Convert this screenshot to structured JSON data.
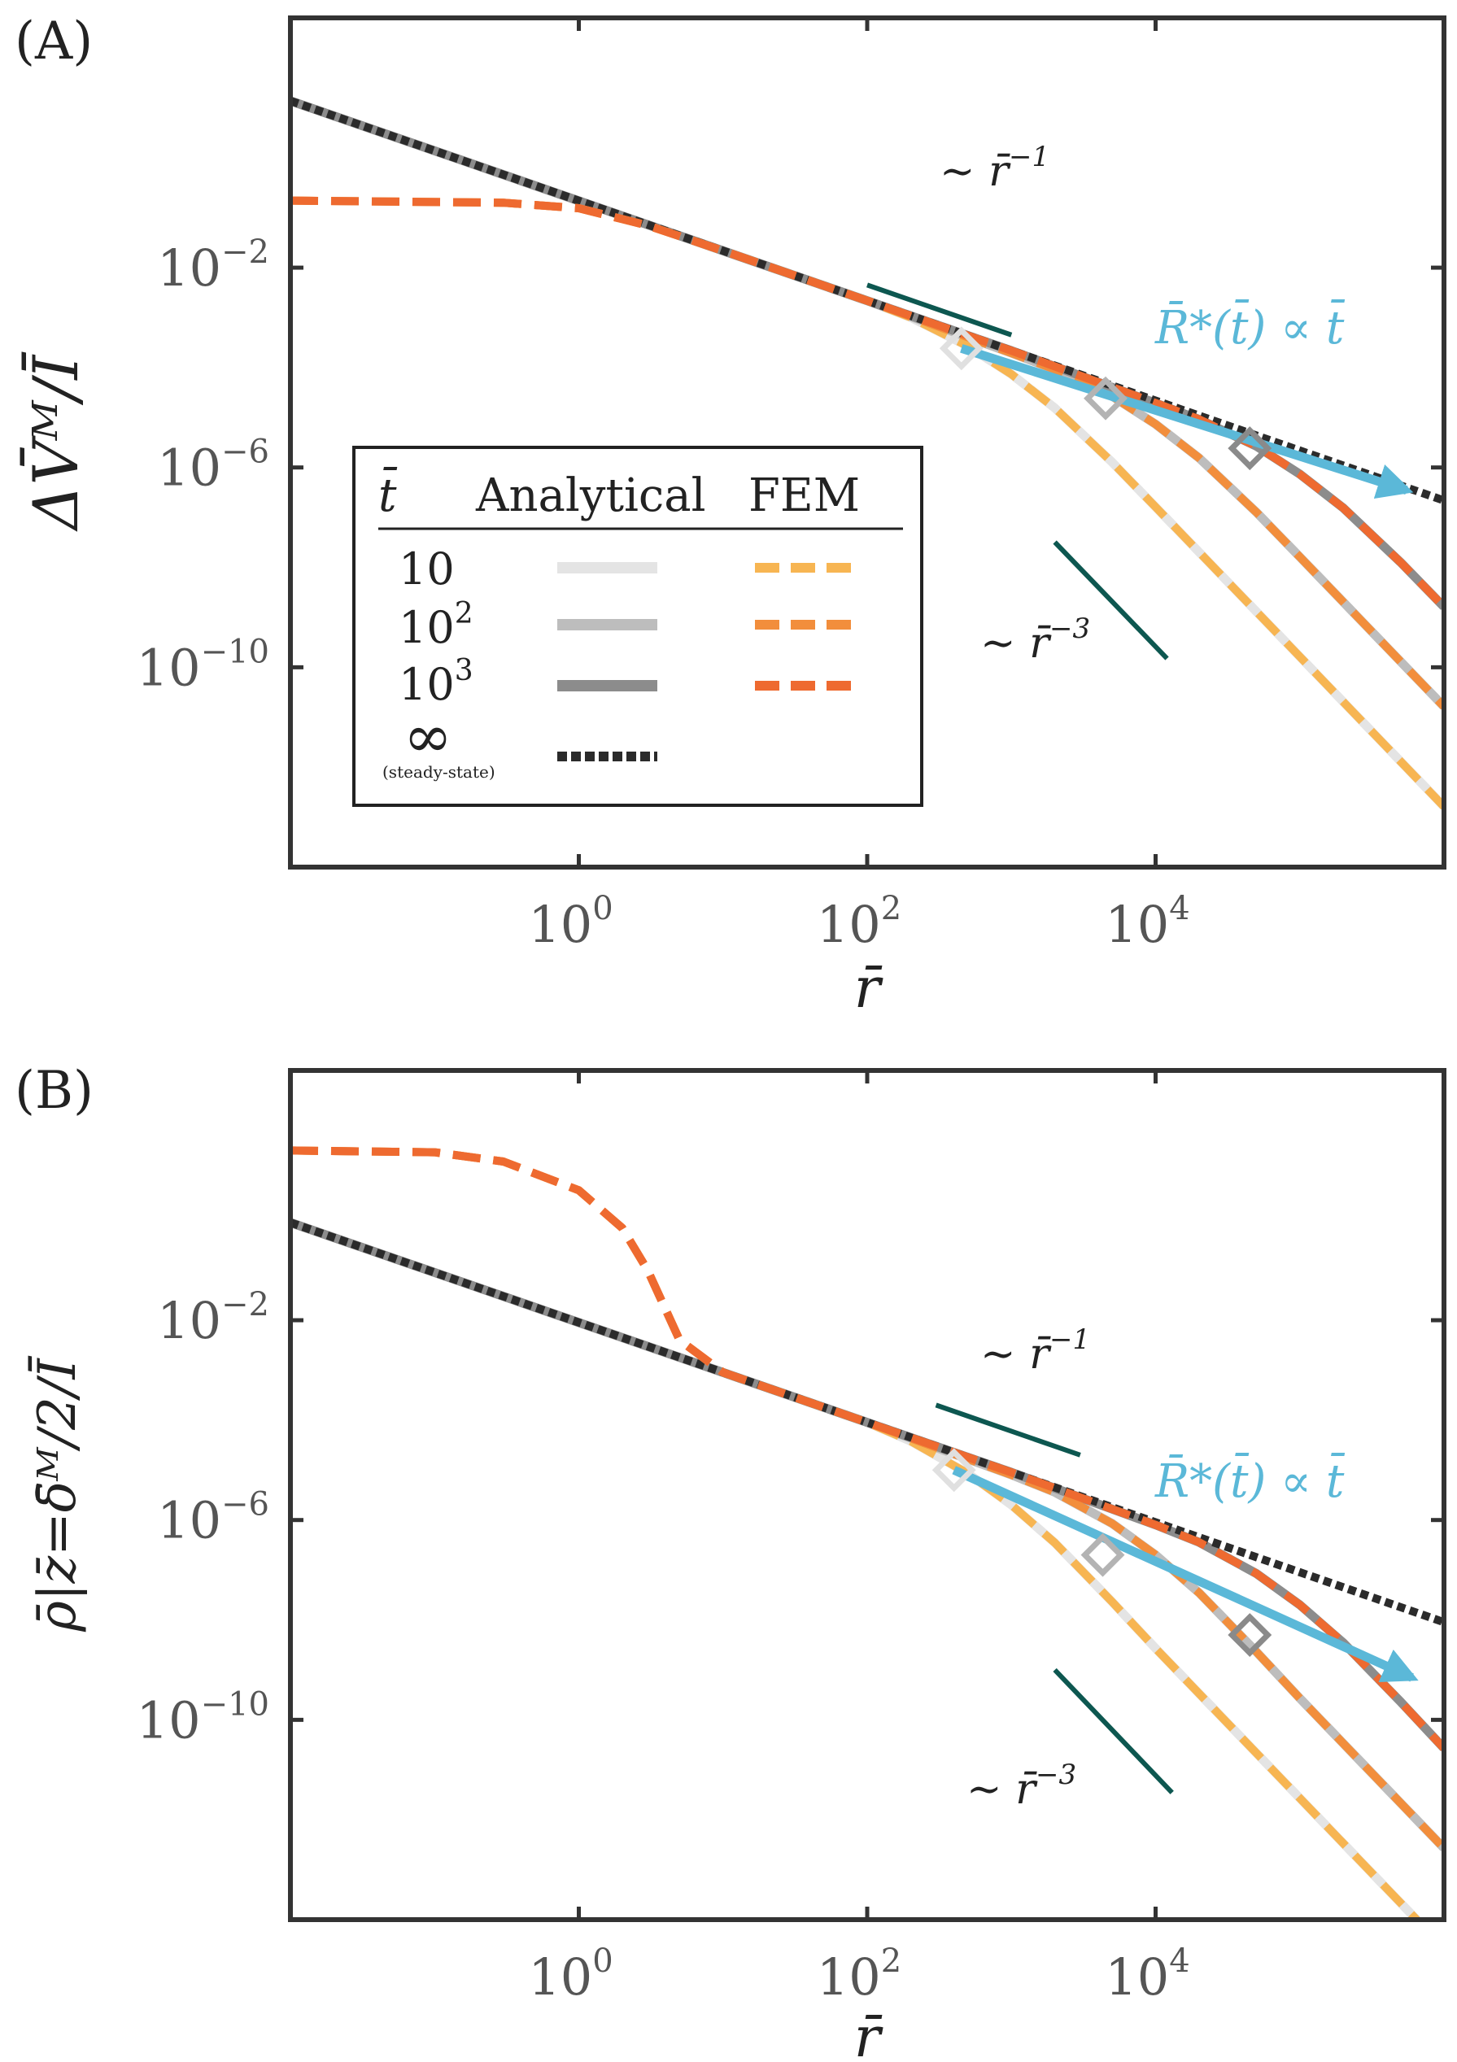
{
  "chart_data": [
    {
      "type": "line",
      "panel_label": "(A)",
      "xscale": "log",
      "yscale": "log",
      "xlim": [
        0.01,
        1000000
      ],
      "ylim": [
        1e-14,
        1000
      ],
      "xlabel": "r̄",
      "ylabel": "ΔV̄ᴹ/Ī",
      "x_ticks": [
        1,
        100,
        10000
      ],
      "x_tick_labels": [
        {
          "b": "10",
          "e": "0"
        },
        {
          "b": "10",
          "e": "2"
        },
        {
          "b": "10",
          "e": "4"
        }
      ],
      "y_ticks": [
        0.01,
        1e-06,
        1e-10
      ],
      "y_tick_labels": [
        {
          "b": "10",
          "e": "−2"
        },
        {
          "b": "10",
          "e": "−6"
        },
        {
          "b": "10",
          "e": "−10"
        }
      ],
      "near_field_plateau": 0.22,
      "series": [
        {
          "name": "Analytical t̄=10",
          "group": "Analytical",
          "t": 10,
          "color": "#e4e4e4",
          "style": "solid",
          "x": [
            0.01,
            1,
            10,
            100,
            200,
            500,
            1000,
            2000,
            5000,
            10000,
            100000,
            1000000
          ],
          "y": [
            21.8,
            0.218,
            0.0218,
            0.00218,
            0.00101,
            0.000267,
            7.36e-05,
            1.55e-05,
            1.27e-06,
            1.62e-07,
            1.63e-10,
            1.63e-13
          ]
        },
        {
          "name": "Analytical t̄=10²",
          "group": "Analytical",
          "t": 100,
          "color": "#bdbdbd",
          "style": "solid",
          "x": [
            0.01,
            1,
            10,
            100,
            1000,
            2000,
            5000,
            10000,
            20000,
            50000,
            100000,
            1000000
          ],
          "y": [
            21.8,
            0.218,
            0.0218,
            0.00218,
            0.000195,
            9.2e-05,
            2.67e-05,
            7.36e-06,
            1.55e-06,
            1.27e-07,
            1.62e-08,
            1.63e-11
          ]
        },
        {
          "name": "Analytical t̄=10³",
          "group": "Analytical",
          "t": 1000,
          "color": "#8c8c8c",
          "style": "solid",
          "x": [
            0.01,
            1,
            10,
            100,
            1000,
            10000,
            20000,
            50000,
            100000,
            200000,
            500000,
            1000000
          ],
          "y": [
            21.8,
            0.218,
            0.0218,
            0.00218,
            0.000218,
            1.95e-05,
            9.2e-06,
            2.67e-06,
            7.36e-07,
            1.55e-07,
            1.27e-08,
            1.62e-09
          ]
        },
        {
          "name": "FEM t̄=10",
          "group": "FEM",
          "t": 10,
          "color": "#f7b552",
          "style": "dashed",
          "x": [
            0.01,
            0.3,
            1,
            3,
            10,
            100,
            200,
            500,
            1000,
            2000,
            5000,
            10000,
            100000,
            1000000
          ],
          "y": [
            0.22,
            0.2,
            0.155,
            0.07,
            0.0218,
            0.00218,
            0.00101,
            0.000267,
            7.36e-05,
            1.55e-05,
            1.27e-06,
            1.62e-07,
            1.63e-10,
            1.63e-13
          ]
        },
        {
          "name": "FEM t̄=10²",
          "group": "FEM",
          "t": 100,
          "color": "#f28e3c",
          "style": "dashed",
          "x": [
            0.01,
            0.3,
            1,
            3,
            10,
            100,
            1000,
            2000,
            5000,
            10000,
            20000,
            50000,
            100000,
            1000000
          ],
          "y": [
            0.22,
            0.2,
            0.155,
            0.07,
            0.0218,
            0.00218,
            0.000195,
            9.2e-05,
            2.67e-05,
            7.36e-06,
            1.55e-06,
            1.27e-07,
            1.62e-08,
            1.63e-11
          ]
        },
        {
          "name": "FEM t̄=10³",
          "group": "FEM",
          "t": 1000,
          "color": "#ee6a30",
          "style": "dashed",
          "x": [
            0.01,
            0.3,
            1,
            3,
            10,
            100,
            1000,
            10000,
            20000,
            50000,
            100000,
            200000,
            500000,
            1000000
          ],
          "y": [
            0.22,
            0.2,
            0.155,
            0.07,
            0.0218,
            0.00218,
            0.000218,
            1.95e-05,
            9.2e-06,
            2.67e-06,
            7.36e-07,
            1.55e-07,
            1.27e-08,
            1.62e-09
          ]
        },
        {
          "name": "Steady-state t̄=∞",
          "group": "Analytical",
          "t": "∞",
          "color": "#2b2b2b",
          "style": "dotted",
          "x": [
            0.01,
            1000000
          ],
          "y": [
            21.8,
            2.18e-07
          ]
        }
      ],
      "markers_R_star": {
        "x": [
          450,
          4500,
          45000
        ],
        "y": [
          0.000242,
          2.42e-05,
          2.42e-06
        ],
        "colors": [
          "#e0e0e0",
          "#b3b3b3",
          "#8a8a8a"
        ]
      },
      "arrow_label": "R̄*(t̄) ∝ t̄",
      "arrow_color": "#5bb8d8",
      "arrow": {
        "x": [
          450,
          550000
        ],
        "y": [
          0.000242,
          3.5e-07
        ]
      },
      "slope_guides": [
        {
          "label": "∼ r̄",
          "exp": "−1",
          "x": [
            100,
            1000
          ],
          "y": [
            0.0045,
            0.00045
          ]
        },
        {
          "label": "∼ r̄",
          "exp": "−3",
          "x": [
            2000,
            12000
          ],
          "y": [
            3.2e-08,
            1.5e-10
          ]
        }
      ],
      "legend": {
        "placement": "center-left",
        "headers": [
          "t̄",
          "Analytical",
          "FEM"
        ],
        "rows": [
          {
            "t": "10",
            "sup": "",
            "sub": ""
          },
          {
            "t": "10",
            "sup": "2",
            "sub": ""
          },
          {
            "t": "10",
            "sup": "3",
            "sub": ""
          },
          {
            "t": "∞",
            "sup": "",
            "sub": "(steady-state)"
          }
        ]
      }
    },
    {
      "type": "line",
      "panel_label": "(B)",
      "xscale": "log",
      "yscale": "log",
      "xlim": [
        0.01,
        1000000
      ],
      "ylim": [
        1e-14,
        1000
      ],
      "xlabel": "r̄",
      "ylabel": "ρ̄|z̄=δ̄ᴹ/2/Ī",
      "x_ticks": [
        1,
        100,
        10000
      ],
      "x_tick_labels": [
        {
          "b": "10",
          "e": "0"
        },
        {
          "b": "10",
          "e": "2"
        },
        {
          "b": "10",
          "e": "4"
        }
      ],
      "y_ticks": [
        0.01,
        1e-06,
        1e-10
      ],
      "y_tick_labels": [
        {
          "b": "10",
          "e": "−2"
        },
        {
          "b": "10",
          "e": "−6"
        },
        {
          "b": "10",
          "e": "−10"
        }
      ],
      "series": [
        {
          "name": "Analytical t̄=10",
          "group": "Analytical",
          "t": 10,
          "color": "#e4e4e4",
          "style": "solid",
          "x": [
            0.01,
            1,
            10,
            100,
            200,
            500,
            1000,
            2000,
            5000,
            10000,
            100000,
            1000000
          ],
          "y": [
            0.9,
            0.009,
            0.0009,
            9e-05,
            3.8e-05,
            8.5e-06,
            2e-06,
            3.5e-07,
            2.3e-08,
            2.7e-09,
            2.7e-12,
            2.7e-15
          ]
        },
        {
          "name": "Analytical t̄=10²",
          "group": "Analytical",
          "t": 100,
          "color": "#bdbdbd",
          "style": "solid",
          "x": [
            0.01,
            1,
            10,
            100,
            1000,
            2000,
            5000,
            10000,
            20000,
            50000,
            100000,
            1000000
          ],
          "y": [
            0.9,
            0.009,
            0.0009,
            9e-05,
            8e-06,
            3.6e-06,
            8.5e-07,
            2e-07,
            3.5e-08,
            2.3e-09,
            2.7e-10,
            2.7e-13
          ]
        },
        {
          "name": "Analytical t̄=10³",
          "group": "Analytical",
          "t": 1000,
          "color": "#8c8c8c",
          "style": "solid",
          "x": [
            0.01,
            1,
            10,
            100,
            1000,
            10000,
            20000,
            50000,
            100000,
            200000,
            500000,
            1000000
          ],
          "y": [
            0.9,
            0.009,
            0.0009,
            9e-05,
            9e-06,
            8e-07,
            3.6e-07,
            8.5e-08,
            2e-08,
            3.5e-09,
            2.3e-10,
            2.7e-11
          ]
        },
        {
          "name": "FEM t̄=10",
          "group": "FEM",
          "t": 10,
          "color": "#f7b552",
          "style": "dashed",
          "x": [
            0.01,
            0.1,
            0.3,
            1,
            2,
            3,
            5,
            10,
            100,
            200,
            500,
            1000,
            2000,
            5000,
            10000,
            100000,
            1000000
          ],
          "y": [
            25,
            23,
            15,
            4,
            0.7,
            0.1,
            0.004,
            0.0009,
            9e-05,
            3.8e-05,
            8.5e-06,
            2e-06,
            3.5e-07,
            2.3e-08,
            2.7e-09,
            2.7e-12,
            2.7e-15
          ]
        },
        {
          "name": "FEM t̄=10²",
          "group": "FEM",
          "t": 100,
          "color": "#f28e3c",
          "style": "dashed",
          "x": [
            0.01,
            0.1,
            0.3,
            1,
            2,
            3,
            5,
            10,
            100,
            1000,
            2000,
            5000,
            10000,
            20000,
            50000,
            100000,
            1000000
          ],
          "y": [
            25,
            23,
            15,
            4,
            0.7,
            0.1,
            0.004,
            0.0009,
            9e-05,
            8e-06,
            3.6e-06,
            8.5e-07,
            2e-07,
            3.5e-08,
            2.3e-09,
            2.7e-10,
            2.7e-13
          ]
        },
        {
          "name": "FEM t̄=10³",
          "group": "FEM",
          "t": 1000,
          "color": "#ee6a30",
          "style": "dashed",
          "x": [
            0.01,
            0.1,
            0.3,
            1,
            2,
            3,
            5,
            10,
            100,
            1000,
            10000,
            20000,
            50000,
            100000,
            200000,
            500000,
            1000000
          ],
          "y": [
            25,
            23,
            15,
            4,
            0.7,
            0.1,
            0.004,
            0.0009,
            9e-05,
            9e-06,
            8e-07,
            3.6e-07,
            8.5e-08,
            2e-08,
            3.5e-09,
            2.3e-10,
            2.7e-11
          ]
        },
        {
          "name": "Steady-state t̄=∞",
          "group": "Analytical",
          "t": "∞",
          "color": "#2b2b2b",
          "style": "dotted",
          "x": [
            0.01,
            1000000
          ],
          "y": [
            0.9,
            9e-09
          ]
        }
      ],
      "markers_R_star": {
        "x": [
          400,
          4300,
          45000
        ],
        "y": [
          1e-05,
          2e-07,
          5e-09
        ],
        "colors": [
          "#e0e0e0",
          "#b3b3b3",
          "#8a8a8a"
        ]
      },
      "arrow_label": "R̄*(t̄) ∝ t̄",
      "arrow_color": "#5bb8d8",
      "arrow": {
        "x": [
          400,
          600000
        ],
        "y": [
          1e-05,
          7e-10
        ]
      },
      "slope_guides": [
        {
          "label": "∼ r̄",
          "exp": "−1",
          "x": [
            300,
            3000
          ],
          "y": [
            0.0002,
            2e-05
          ]
        },
        {
          "label": "∼ r̄",
          "exp": "−3",
          "x": [
            2000,
            13000
          ],
          "y": [
            1e-09,
            3.5e-12
          ]
        }
      ]
    }
  ]
}
